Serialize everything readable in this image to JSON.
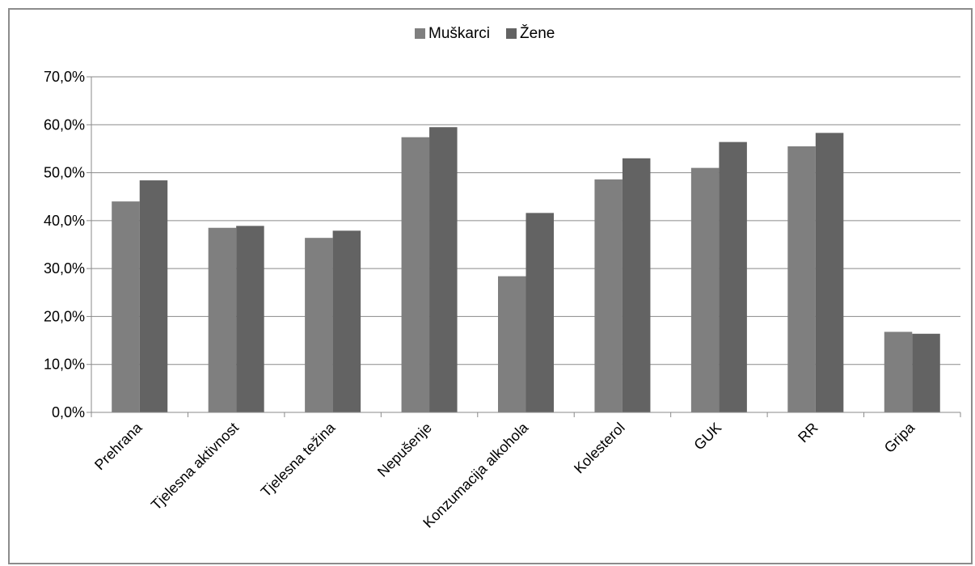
{
  "chart_data": {
    "type": "bar",
    "categories": [
      "Prehrana",
      "Tjelesna aktivnost",
      "Tjelesna težina",
      "Nepušenje",
      "Konzumacija alkohola",
      "Kolesterol",
      "GUK",
      "RR",
      "Gripa"
    ],
    "series": [
      {
        "name": "Muškarci",
        "color": "#7f7f7f",
        "values": [
          44.0,
          38.5,
          36.4,
          57.4,
          28.4,
          48.6,
          51.0,
          55.5,
          16.8
        ]
      },
      {
        "name": "Žene",
        "color": "#636363",
        "values": [
          48.4,
          38.9,
          37.9,
          59.5,
          41.6,
          53.0,
          56.4,
          58.3,
          16.4
        ]
      }
    ],
    "y_ticks": [
      "0,0%",
      "10,0%",
      "20,0%",
      "30,0%",
      "40,0%",
      "50,0%",
      "60,0%",
      "70,0%"
    ],
    "ylim": [
      0,
      70
    ],
    "grid": true,
    "legend_position": "top-center"
  }
}
